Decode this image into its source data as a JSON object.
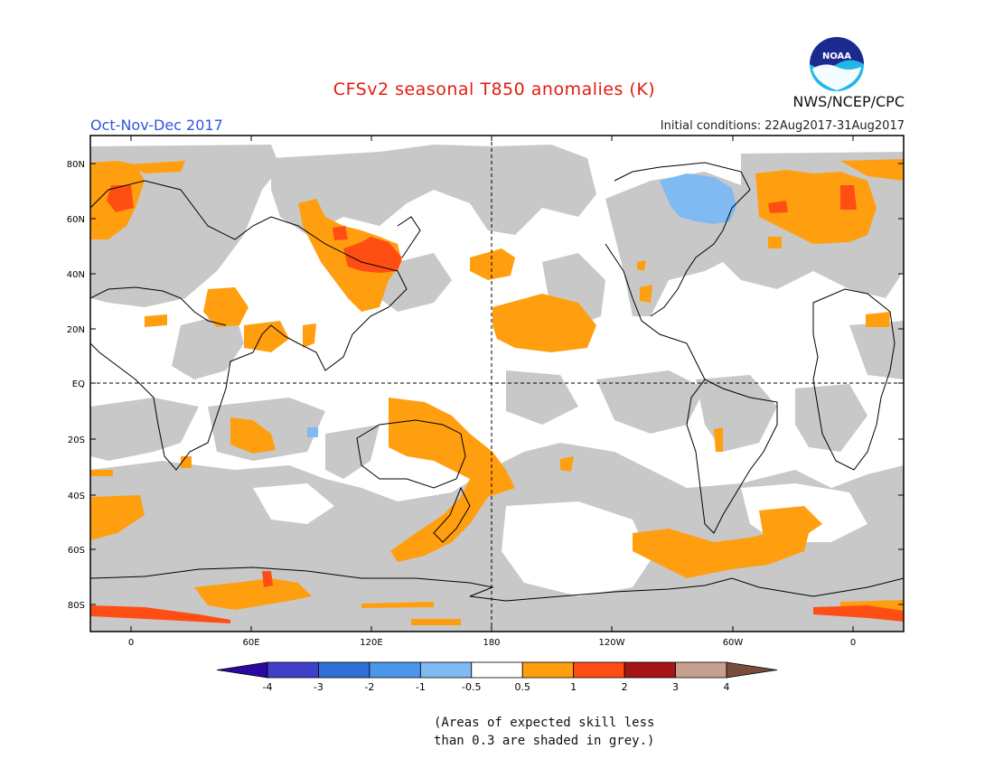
{
  "title": "CFSv2 seasonal T850 anomalies (K)",
  "season": "Oct-Nov-Dec 2017",
  "initial_conditions": "Initial conditions: 22Aug2017-31Aug2017",
  "agency": "NWS/NCEP/CPC",
  "logo_text": "NOAA",
  "lat_labels": [
    "80N",
    "60N",
    "40N",
    "20N",
    "EQ",
    "20S",
    "40S",
    "60S",
    "80S"
  ],
  "lon_labels": [
    "0",
    "60E",
    "120E",
    "180",
    "120W",
    "60W",
    "0"
  ],
  "colorbar": {
    "labels": [
      "-4",
      "-3",
      "-2",
      "-1",
      "-0.5",
      "0.5",
      "1",
      "2",
      "3",
      "4"
    ],
    "colors": [
      "#2a0a9e",
      "#3f3fc8",
      "#2f6fd6",
      "#4a97ea",
      "#7fbaf2",
      "#ffffff",
      "#ff9f0f",
      "#ff4e14",
      "#a51515",
      "#c8a090",
      "#7a4c3a"
    ]
  },
  "colors": {
    "grey_mask": "#c8c8c8",
    "warm_05": "#ff9f0f",
    "warm_1": "#ff4e14",
    "cool_05": "#7fbaf2",
    "title_red": "#e31b0f",
    "season_blue": "#3355dd"
  },
  "note_line1": "(Areas of expected skill less",
  "note_line2": "than 0.3 are shaded in grey.)"
}
